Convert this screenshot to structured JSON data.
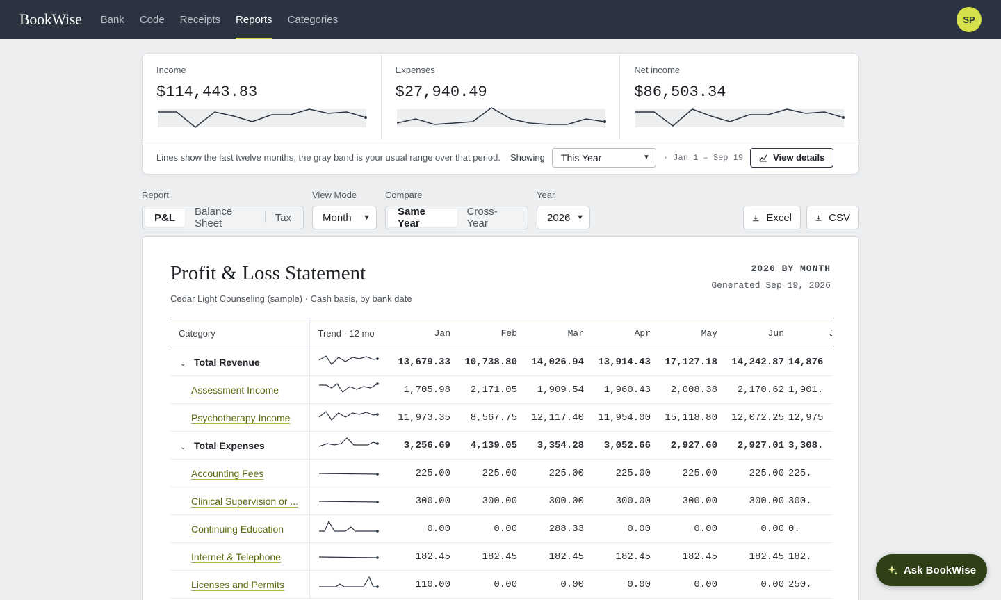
{
  "app": {
    "logo": "BookWise",
    "nav": [
      "Bank",
      "Code",
      "Receipts",
      "Reports",
      "Categories"
    ],
    "active_nav": "Reports",
    "avatar_initials": "SP"
  },
  "summary": {
    "kpis": [
      {
        "label": "Income",
        "value": "$114,443.83"
      },
      {
        "label": "Expenses",
        "value": "$27,940.49"
      },
      {
        "label": "Net income",
        "value": "$86,503.34"
      }
    ],
    "note": "Lines show the last twelve months; the gray band is your usual range over that period.",
    "showing_label": "Showing",
    "showing_value": "This Year",
    "range": "· Jan 1 – Sep 19",
    "view_details": "View details"
  },
  "controls": {
    "report_label": "Report",
    "report_options": [
      "P&L",
      "Balance Sheet",
      "Tax"
    ],
    "report_active": "P&L",
    "view_mode_label": "View Mode",
    "view_mode_value": "Month",
    "compare_label": "Compare",
    "compare_options": [
      "Same Year",
      "Cross-Year"
    ],
    "compare_active": "Same Year",
    "year_label": "Year",
    "year_value": "2026",
    "excel": "Excel",
    "csv": "CSV"
  },
  "report": {
    "title": "Profit & Loss Statement",
    "subtitle": "Cedar Light Counseling (sample) · Cash basis, by bank date",
    "period": "2026 BY MONTH",
    "generated": "Generated Sep 19, 2026",
    "col_category": "Category",
    "col_trend": "Trend · 12 mo",
    "months": [
      "Jan",
      "Feb",
      "Mar",
      "Apr",
      "May",
      "Jun",
      "Jul"
    ],
    "rows": [
      {
        "name": "Total Revenue",
        "group": true,
        "values": [
          "13,679.33",
          "10,738.80",
          "14,026.94",
          "13,914.43",
          "17,127.18",
          "14,242.87",
          "14,876"
        ]
      },
      {
        "name": "Assessment Income",
        "group": false,
        "values": [
          "1,705.98",
          "2,171.05",
          "1,909.54",
          "1,960.43",
          "2,008.38",
          "2,170.62",
          "1,901."
        ]
      },
      {
        "name": "Psychotherapy Income",
        "group": false,
        "values": [
          "11,973.35",
          "8,567.75",
          "12,117.40",
          "11,954.00",
          "15,118.80",
          "12,072.25",
          "12,975"
        ]
      },
      {
        "name": "Total Expenses",
        "group": true,
        "values": [
          "3,256.69",
          "4,139.05",
          "3,354.28",
          "3,052.66",
          "2,927.60",
          "2,927.01",
          "3,308."
        ]
      },
      {
        "name": "Accounting Fees",
        "group": false,
        "values": [
          "225.00",
          "225.00",
          "225.00",
          "225.00",
          "225.00",
          "225.00",
          "225."
        ]
      },
      {
        "name": "Clinical Supervision or ...",
        "group": false,
        "values": [
          "300.00",
          "300.00",
          "300.00",
          "300.00",
          "300.00",
          "300.00",
          "300."
        ]
      },
      {
        "name": "Continuing Education",
        "group": false,
        "values": [
          "0.00",
          "0.00",
          "288.33",
          "0.00",
          "0.00",
          "0.00",
          "0."
        ]
      },
      {
        "name": "Internet & Telephone",
        "group": false,
        "values": [
          "182.45",
          "182.45",
          "182.45",
          "182.45",
          "182.45",
          "182.45",
          "182."
        ]
      },
      {
        "name": "Licenses and Permits",
        "group": false,
        "values": [
          "110.00",
          "0.00",
          "0.00",
          "0.00",
          "0.00",
          "0.00",
          "250."
        ]
      }
    ]
  },
  "ask_button": "Ask BookWise",
  "colors": {
    "nav_bg": "#2b3440",
    "accent": "#c8d14a",
    "avatar": "#d6e04b",
    "link": "#5c6b10",
    "ask_bg": "#2f4016"
  }
}
